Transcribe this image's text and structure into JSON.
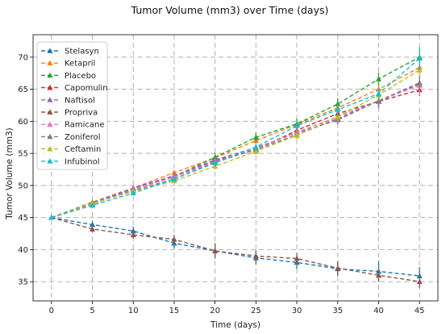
{
  "chart_data": {
    "type": "line",
    "title": "Tumor Volume (mm3) over Time (days)",
    "xlabel": "Time (days)",
    "ylabel": "Tumor Volume (mm3)",
    "xlim": [
      -2.25,
      47.25
    ],
    "ylim": [
      32,
      73.5
    ],
    "x": [
      0,
      5,
      10,
      15,
      20,
      25,
      30,
      35,
      40,
      45
    ],
    "xticks": [
      "0",
      "5",
      "10",
      "15",
      "20",
      "25",
      "30",
      "35",
      "40",
      "45"
    ],
    "yticks": [
      "35",
      "40",
      "45",
      "50",
      "55",
      "60",
      "65",
      "70"
    ],
    "grid": true,
    "line_style": "dashed",
    "legend_position": "upper-left",
    "series": [
      {
        "name": "Stelasyn",
        "color": "#1f77b4",
        "marker": "triangle",
        "values": [
          45.0,
          43.9,
          42.9,
          41.0,
          39.8,
          38.7,
          38.0,
          37.0,
          36.6,
          35.9
        ],
        "errors": [
          0.0,
          0.5,
          0.7,
          0.8,
          1.2,
          1.0,
          1.0,
          1.1,
          1.6,
          1.4
        ]
      },
      {
        "name": "Ketapril",
        "color": "#ff7f0e",
        "marker": "triangle",
        "values": [
          45.0,
          47.4,
          49.6,
          52.0,
          54.3,
          57.0,
          59.5,
          62.1,
          65.0,
          68.4
        ],
        "errors": [
          0.0,
          0.2,
          0.3,
          0.4,
          0.5,
          0.5,
          0.6,
          0.7,
          0.9,
          1.0
        ]
      },
      {
        "name": "Placebo",
        "color": "#2ca02c",
        "marker": "triangle",
        "values": [
          45.0,
          47.1,
          49.4,
          51.4,
          54.4,
          57.5,
          59.6,
          62.7,
          66.6,
          70.0
        ],
        "errors": [
          0.0,
          0.2,
          0.3,
          0.6,
          0.7,
          0.7,
          0.8,
          0.9,
          1.0,
          1.0
        ]
      },
      {
        "name": "Capomulin",
        "color": "#d62728",
        "marker": "triangle",
        "values": [
          45.0,
          47.1,
          49.6,
          51.5,
          53.9,
          55.5,
          58.6,
          61.2,
          63.1,
          64.9
        ],
        "errors": [
          0.0,
          0.2,
          0.3,
          0.4,
          0.5,
          0.6,
          0.7,
          0.8,
          1.0,
          1.0
        ]
      },
      {
        "name": "Naftisol",
        "color": "#9467bd",
        "marker": "triangle",
        "values": [
          45.0,
          47.3,
          49.6,
          51.5,
          54.0,
          55.9,
          58.2,
          60.2,
          63.2,
          65.8
        ],
        "errors": [
          0.0,
          0.2,
          0.3,
          0.4,
          0.5,
          0.5,
          0.6,
          0.7,
          0.9,
          1.0
        ]
      },
      {
        "name": "Propriva",
        "color": "#8c564b",
        "marker": "triangle",
        "values": [
          45.0,
          43.2,
          42.3,
          41.6,
          39.8,
          39.0,
          38.6,
          37.1,
          36.0,
          35.0
        ],
        "errors": [
          0.0,
          0.5,
          0.6,
          0.7,
          0.9,
          0.9,
          0.9,
          1.1,
          1.0,
          1.0
        ]
      },
      {
        "name": "Ramicane",
        "color": "#e377c2",
        "marker": "triangle",
        "values": [
          45.0,
          47.1,
          49.4,
          51.3,
          53.7,
          55.7,
          58.3,
          60.7,
          63.2,
          65.6
        ],
        "errors": [
          0.0,
          0.2,
          0.3,
          0.4,
          0.5,
          0.6,
          0.7,
          0.9,
          1.3,
          1.6
        ]
      },
      {
        "name": "Zoniferol",
        "color": "#7f7f7f",
        "marker": "triangle",
        "values": [
          45.0,
          47.3,
          49.2,
          51.0,
          53.6,
          55.6,
          57.9,
          60.4,
          63.2,
          66.0
        ],
        "errors": [
          0.0,
          0.2,
          0.3,
          0.4,
          0.4,
          0.5,
          0.6,
          0.8,
          1.0,
          1.1
        ]
      },
      {
        "name": "Ceftamin",
        "color": "#bcbd22",
        "marker": "triangle",
        "values": [
          45.0,
          47.2,
          49.1,
          50.7,
          53.0,
          55.3,
          57.8,
          60.7,
          64.1,
          68.0
        ],
        "errors": [
          0.0,
          0.2,
          0.3,
          0.4,
          0.5,
          0.5,
          0.6,
          0.8,
          0.9,
          1.0
        ]
      },
      {
        "name": "Infubinol",
        "color": "#17becf",
        "marker": "triangle",
        "values": [
          45.0,
          46.9,
          48.8,
          51.0,
          53.5,
          56.0,
          59.3,
          61.8,
          64.3,
          69.8
        ],
        "errors": [
          0.0,
          0.2,
          0.3,
          0.4,
          0.5,
          0.6,
          0.7,
          0.9,
          1.0,
          1.8
        ]
      }
    ]
  }
}
